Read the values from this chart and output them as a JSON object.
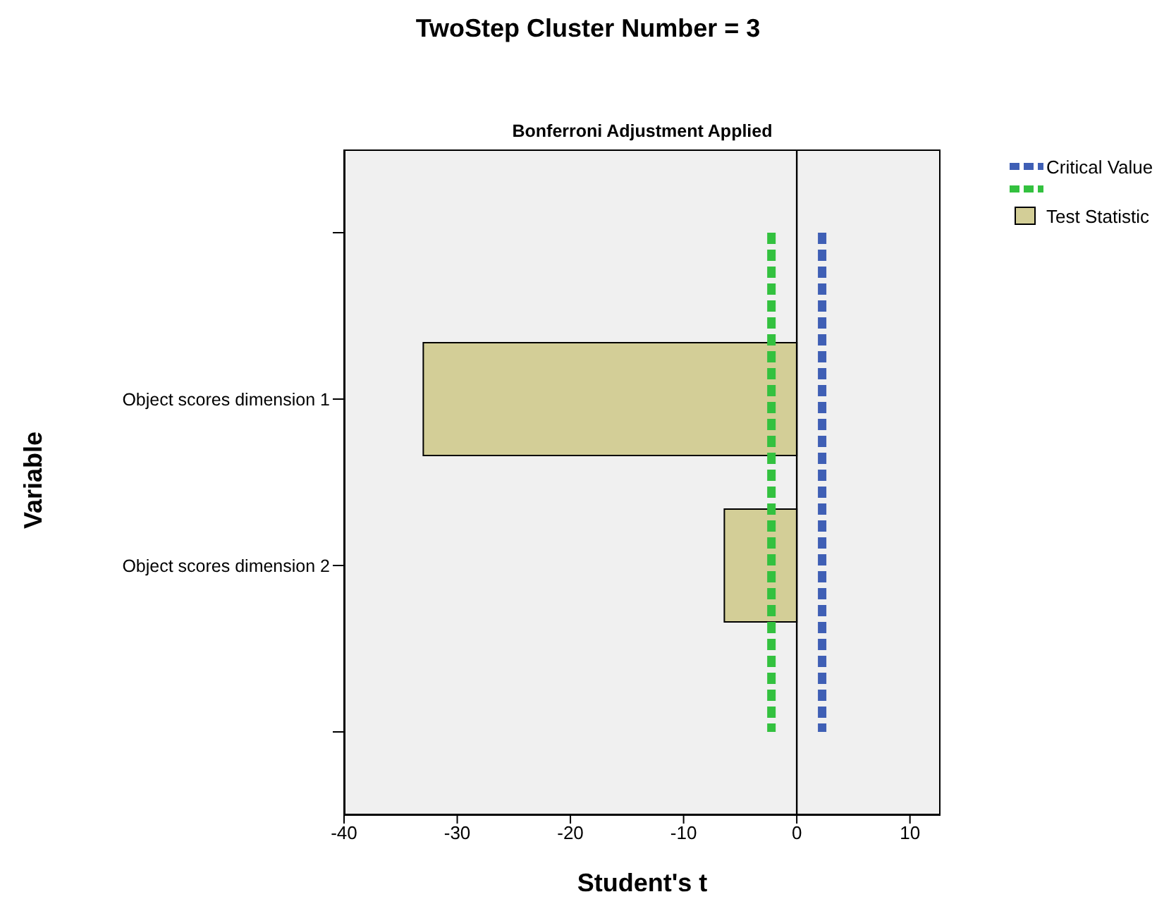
{
  "chart_data": {
    "type": "bar",
    "orientation": "horizontal",
    "title": "TwoStep Cluster Number = 3",
    "subtitle": "Bonferroni Adjustment Applied",
    "xlabel": "Student's t",
    "ylabel": "Variable",
    "categories": [
      null,
      "Object scores dimension 1",
      "Object scores dimension 2",
      null
    ],
    "series": [
      {
        "name": "Test Statistic",
        "color": "#d3ce97",
        "values": [
          null,
          -33,
          -6.4,
          null
        ]
      }
    ],
    "xlim": [
      -40,
      12.7
    ],
    "xticks": [
      -40,
      -30,
      -20,
      -10,
      0,
      10
    ],
    "ref_lines": [
      {
        "axis": "x",
        "value": 2.24,
        "label": "Critical Value",
        "color": "#3f5fb5",
        "line_style": "dashed"
      },
      {
        "axis": "x",
        "value": -2.24,
        "color": "#33c13f",
        "line_style": "dashed"
      },
      {
        "axis": "x",
        "value": 0,
        "color": "#000000",
        "line_style": "solid"
      }
    ],
    "legend": "top right",
    "grid": false
  }
}
